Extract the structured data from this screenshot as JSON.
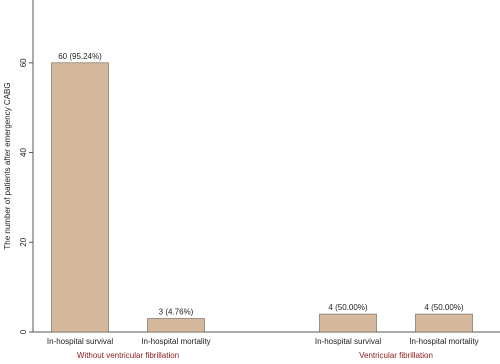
{
  "chart_data": {
    "type": "bar",
    "y_label": "The number of patients after emergency CABG",
    "groups": [
      {
        "label": "Without ventricular fibrillation",
        "categories": [
          "In-hospital survival",
          "In-hospital mortality"
        ],
        "values": [
          60,
          3
        ],
        "value_labels": [
          "60 (95.24%)",
          "3 (4.76%)"
        ]
      },
      {
        "label": "Ventricular fibrillation",
        "categories": [
          "In-hospital survival",
          "In-hospital mortality"
        ],
        "values": [
          4,
          4
        ],
        "value_labels": [
          "4 (50.00%)",
          "4 (50.00%)"
        ]
      }
    ],
    "color": "#d4b99e",
    "ylim": [
      0,
      74
    ],
    "yticks": [
      0,
      20,
      40,
      60
    ]
  }
}
